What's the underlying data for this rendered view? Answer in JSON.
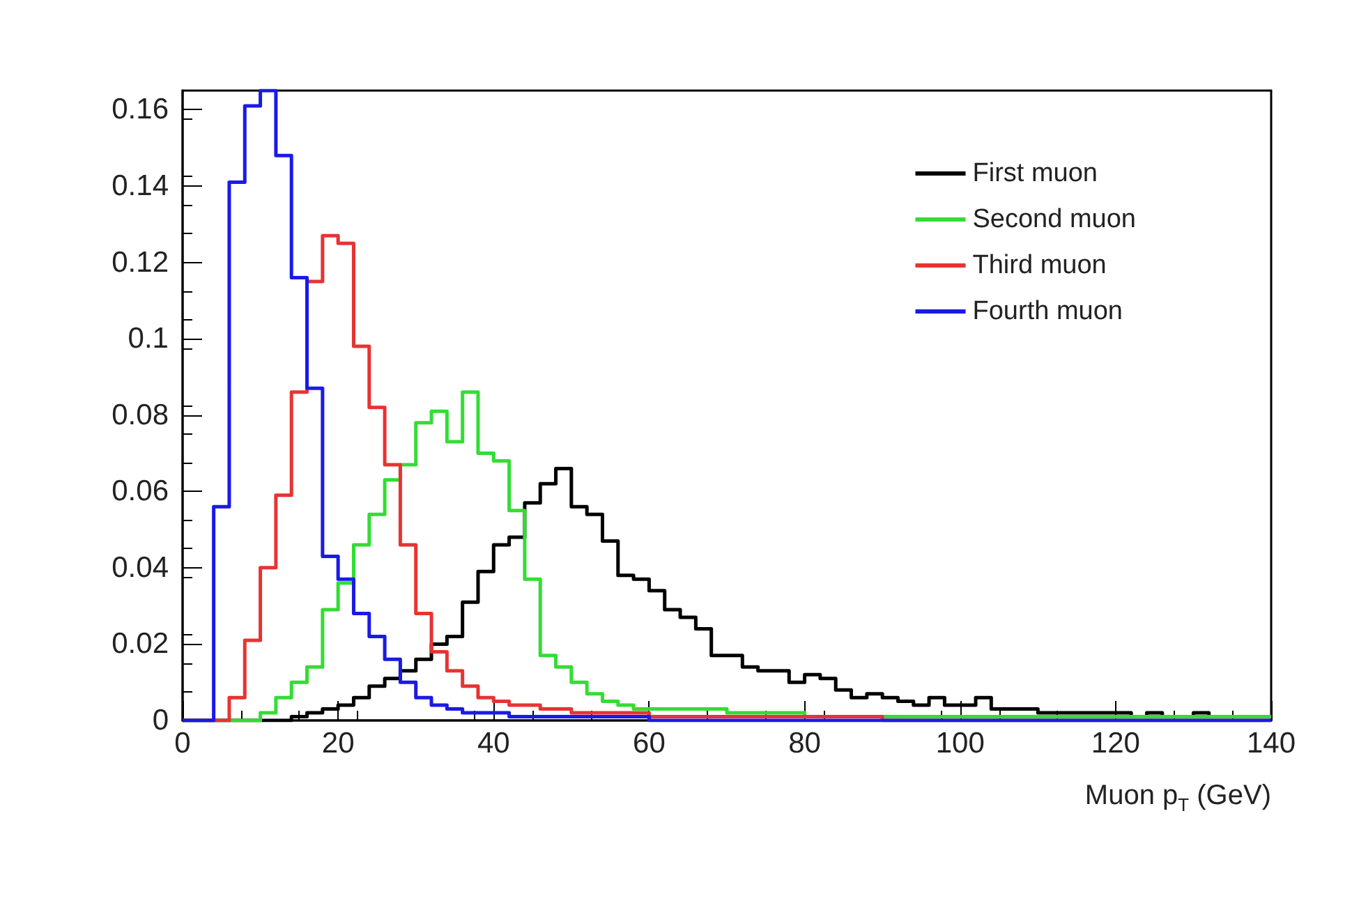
{
  "chart_data": {
    "type": "histogram",
    "xlabel": "Muon p$_{T}$ (GeV)",
    "bins": [
      0,
      2,
      4,
      6,
      8,
      10,
      12,
      14,
      16,
      18,
      20,
      22,
      24,
      26,
      28,
      30,
      32,
      34,
      36,
      38,
      40,
      42,
      44,
      46,
      48,
      50,
      52,
      54,
      56,
      58,
      60,
      62,
      64,
      66,
      68,
      70,
      72,
      74,
      76,
      78,
      80,
      82,
      84,
      86,
      88,
      90,
      92,
      94,
      96,
      98,
      100,
      102,
      104,
      106,
      108,
      110,
      112,
      114,
      116,
      118,
      120,
      122,
      124,
      126,
      128,
      130,
      132,
      134,
      136,
      138,
      140
    ],
    "series": [
      {
        "name": "First muon",
        "color": "#000000",
        "values": [
          0,
          0,
          0,
          0,
          0,
          0,
          0,
          0.001,
          0.002,
          0.003,
          0.004,
          0.006,
          0.009,
          0.011,
          0.013,
          0.016,
          0.02,
          0.022,
          0.031,
          0.039,
          0.046,
          0.048,
          0.057,
          0.062,
          0.066,
          0.056,
          0.054,
          0.047,
          0.038,
          0.037,
          0.034,
          0.029,
          0.027,
          0.024,
          0.017,
          0.017,
          0.014,
          0.013,
          0.013,
          0.01,
          0.012,
          0.011,
          0.008,
          0.006,
          0.007,
          0.006,
          0.005,
          0.004,
          0.006,
          0.004,
          0.004,
          0.006,
          0.003,
          0.003,
          0.003,
          0.002,
          0.002,
          0.002,
          0.002,
          0.002,
          0.002,
          0.001,
          0.002,
          0.001,
          0.001,
          0.002,
          0.001,
          0.001,
          0.001,
          0.001
        ]
      },
      {
        "name": "Second muon",
        "color": "#33dd33",
        "values": [
          0,
          0,
          0,
          0,
          0,
          0.002,
          0.006,
          0.01,
          0.014,
          0.029,
          0.036,
          0.046,
          0.054,
          0.063,
          0.067,
          0.078,
          0.081,
          0.073,
          0.086,
          0.07,
          0.068,
          0.055,
          0.037,
          0.017,
          0.014,
          0.01,
          0.007,
          0.005,
          0.004,
          0.003,
          0.003,
          0.003,
          0.003,
          0.003,
          0.003,
          0.002,
          0.002,
          0.002,
          0.002,
          0.002,
          0.001,
          0.001,
          0.001,
          0.001,
          0.001,
          0.001,
          0.001,
          0.001,
          0.001,
          0.001,
          0.001,
          0.001,
          0.001,
          0.001,
          0.001,
          0.001,
          0.001,
          0.001,
          0.001,
          0.001,
          0.001,
          0.001,
          0.001,
          0.001,
          0.001,
          0.001,
          0.001,
          0.001,
          0.001,
          0.001
        ]
      },
      {
        "name": "Third muon",
        "color": "#e83333",
        "values": [
          0,
          0,
          0,
          0.006,
          0.021,
          0.04,
          0.059,
          0.086,
          0.115,
          0.127,
          0.125,
          0.098,
          0.082,
          0.067,
          0.046,
          0.028,
          0.018,
          0.013,
          0.009,
          0.006,
          0.005,
          0.004,
          0.004,
          0.003,
          0.003,
          0.002,
          0.002,
          0.002,
          0.002,
          0.002,
          0.001,
          0.001,
          0.001,
          0.001,
          0.001,
          0.001,
          0.001,
          0.001,
          0.001,
          0.001,
          0.001,
          0.001,
          0.001,
          0.001,
          0.001,
          0,
          0,
          0,
          0,
          0,
          0,
          0,
          0,
          0,
          0,
          0,
          0,
          0,
          0,
          0,
          0,
          0,
          0,
          0,
          0,
          0,
          0,
          0,
          0,
          0
        ]
      },
      {
        "name": "Fourth muon",
        "color": "#1a1ae6",
        "values": [
          0,
          0,
          0.056,
          0.141,
          0.161,
          0.165,
          0.148,
          0.116,
          0.087,
          0.043,
          0.037,
          0.028,
          0.022,
          0.016,
          0.01,
          0.006,
          0.004,
          0.003,
          0.002,
          0.002,
          0.002,
          0.001,
          0.001,
          0.001,
          0.001,
          0.001,
          0.001,
          0.001,
          0.001,
          0.001,
          0,
          0,
          0,
          0,
          0,
          0,
          0,
          0,
          0,
          0,
          0,
          0,
          0,
          0,
          0,
          0,
          0,
          0,
          0,
          0,
          0,
          0,
          0,
          0,
          0,
          0,
          0,
          0,
          0,
          0,
          0,
          0,
          0,
          0,
          0,
          0,
          0,
          0,
          0,
          0
        ]
      }
    ],
    "xlim": [
      0,
      140
    ],
    "xticks": [
      0,
      20,
      40,
      60,
      80,
      100,
      120,
      140
    ],
    "ylim": [
      0,
      0.165
    ],
    "yticks": [
      0,
      0.02,
      0.04,
      0.06,
      0.08,
      0.1,
      0.12,
      0.14,
      0.16
    ],
    "legend": "top right",
    "grid": false
  }
}
